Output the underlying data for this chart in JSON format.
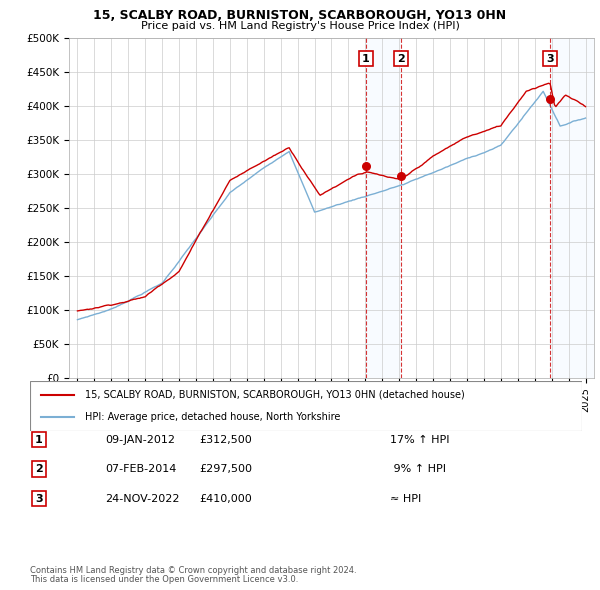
{
  "title": "15, SCALBY ROAD, BURNISTON, SCARBOROUGH, YO13 0HN",
  "subtitle": "Price paid vs. HM Land Registry's House Price Index (HPI)",
  "ylim": [
    0,
    500000
  ],
  "yticks": [
    0,
    50000,
    100000,
    150000,
    200000,
    250000,
    300000,
    350000,
    400000,
    450000,
    500000
  ],
  "ytick_labels": [
    "£0",
    "£50K",
    "£100K",
    "£150K",
    "£200K",
    "£250K",
    "£300K",
    "£350K",
    "£400K",
    "£450K",
    "£500K"
  ],
  "background_color": "#ffffff",
  "grid_color": "#cccccc",
  "legend_entry1": "15, SCALBY ROAD, BURNISTON, SCARBOROUGH, YO13 0HN (detached house)",
  "legend_entry2": "HPI: Average price, detached house, North Yorkshire",
  "transactions": [
    {
      "label": "1",
      "date": "09-JAN-2012",
      "price": 312500,
      "hpi_rel": "17% ↑ HPI",
      "x": 2012.04
    },
    {
      "label": "2",
      "date": "07-FEB-2014",
      "price": 297500,
      "hpi_rel": "9% ↑ HPI",
      "x": 2014.1
    },
    {
      "label": "3",
      "date": "24-NOV-2022",
      "price": 410000,
      "hpi_rel": "≈ HPI",
      "x": 2022.9
    }
  ],
  "footer1": "Contains HM Land Registry data © Crown copyright and database right 2024.",
  "footer2": "This data is licensed under the Open Government Licence v3.0.",
  "red_color": "#cc0000",
  "blue_color": "#7bafd4",
  "shade_color": "#ddeeff"
}
